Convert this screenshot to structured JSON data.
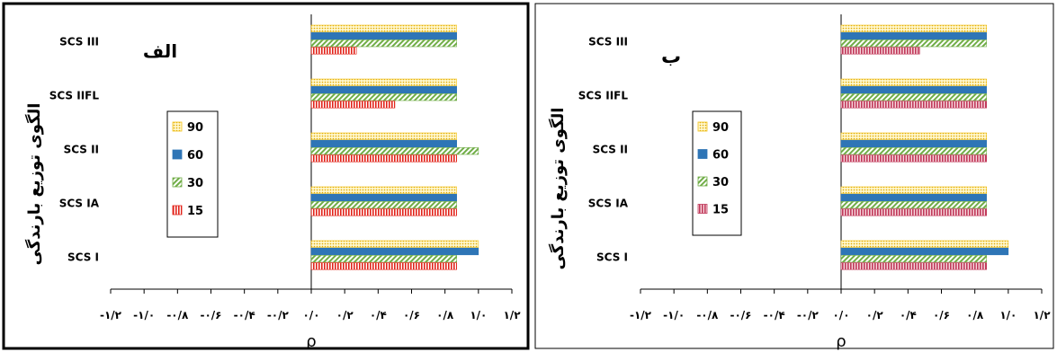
{
  "chart_data": [
    {
      "type": "bar",
      "orientation": "horizontal",
      "panel_label": "الف",
      "xlabel": "ρ",
      "ylabel": "الگوی توزیع بارندگی",
      "xlim": [
        -1.2,
        1.2
      ],
      "x_ticks": [
        -1.2,
        -1.0,
        -0.8,
        -0.6,
        -0.4,
        -0.2,
        0.0,
        0.2,
        0.4,
        0.6,
        0.8,
        1.0,
        1.2
      ],
      "x_tick_labels": [
        "-۱/۲",
        "-۱/۰",
        "-۰/۸",
        "-۰/۶",
        "-۰/۴",
        "-۰/۲",
        "۰/۰",
        "۰/۲",
        "۰/۴",
        "۰/۶",
        "۰/۸",
        "۱/۰",
        "۱/۲"
      ],
      "categories": [
        "SCS III",
        "SCS IIFL",
        "SCS II",
        "SCS IA",
        "SCS I"
      ],
      "legend_position": "left-middle",
      "grid": false,
      "series": [
        {
          "name": "90",
          "color": "#f2c21a",
          "pattern": "dots",
          "values": [
            0.87,
            0.87,
            0.87,
            0.87,
            1.0
          ]
        },
        {
          "name": "60",
          "color": "#2e75b6",
          "pattern": "solid",
          "values": [
            0.87,
            0.87,
            0.87,
            0.87,
            1.0
          ]
        },
        {
          "name": "30",
          "color": "#70ad47",
          "pattern": "diagonal",
          "values": [
            0.87,
            0.87,
            1.0,
            0.87,
            0.87
          ]
        },
        {
          "name": "15",
          "color": "#e2231a",
          "pattern": "vertical",
          "values": [
            0.27,
            0.5,
            0.87,
            0.87,
            0.87
          ]
        }
      ]
    },
    {
      "type": "bar",
      "orientation": "horizontal",
      "panel_label": "ب",
      "xlabel": "ρ",
      "ylabel": "الگوی توزیع بارندگی",
      "xlim": [
        -1.2,
        1.2
      ],
      "x_ticks": [
        -1.2,
        -1.0,
        -0.8,
        -0.6,
        -0.4,
        -0.2,
        0.0,
        0.2,
        0.4,
        0.6,
        0.8,
        1.0,
        1.2
      ],
      "x_tick_labels": [
        "-۱/۲",
        "-۱/۰",
        "-۰/۸",
        "-۰/۶",
        "-۰/۴",
        "-۰/۲",
        "۰/۰",
        "۰/۲",
        "۰/۴",
        "۰/۶",
        "۰/۸",
        "۱/۰",
        "۱/۲"
      ],
      "categories": [
        "SCS III",
        "SCS IIFL",
        "SCS II",
        "SCS IA",
        "SCS I"
      ],
      "legend_position": "left-middle",
      "grid": false,
      "series": [
        {
          "name": "90",
          "color": "#f2c21a",
          "pattern": "dots",
          "values": [
            0.87,
            0.87,
            0.87,
            0.87,
            1.0
          ]
        },
        {
          "name": "60",
          "color": "#2e75b6",
          "pattern": "solid",
          "values": [
            0.87,
            0.87,
            0.87,
            0.87,
            1.0
          ]
        },
        {
          "name": "30",
          "color": "#70ad47",
          "pattern": "diagonal",
          "values": [
            0.87,
            0.87,
            0.87,
            0.87,
            0.87
          ]
        },
        {
          "name": "15",
          "color": "#c0395a",
          "pattern": "vertical",
          "values": [
            0.47,
            0.87,
            0.87,
            0.87,
            0.87
          ]
        }
      ]
    }
  ]
}
